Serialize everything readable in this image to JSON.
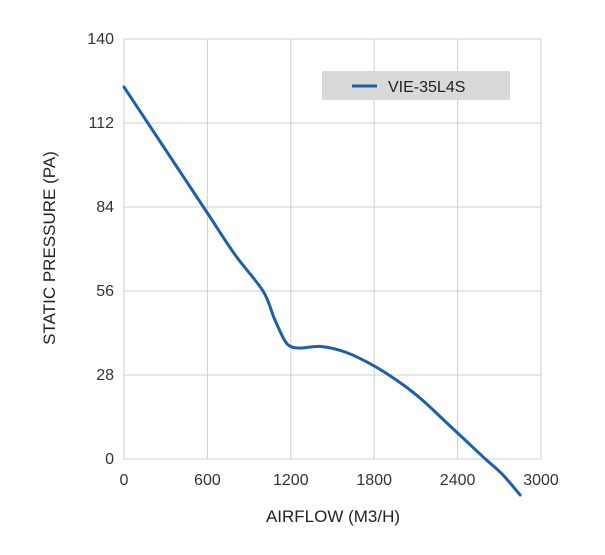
{
  "chart_data": {
    "type": "line",
    "xlabel": "AIRFLOW (M3/H)",
    "ylabel": "STATIC PRESSURE (PA)",
    "xlim": [
      0,
      3000
    ],
    "ylim": [
      0,
      140
    ],
    "x_ticks": [
      0,
      600,
      1200,
      1800,
      2400,
      3000
    ],
    "y_ticks": [
      0,
      28,
      56,
      84,
      112,
      140
    ],
    "grid": true,
    "legend_position": "top-right",
    "series": [
      {
        "name": "VIE-35L4S",
        "color": "#1f5fa8",
        "x": [
          0,
          200,
          400,
          600,
          800,
          1000,
          1080,
          1150,
          1200,
          1280,
          1420,
          1600,
          1800,
          2000,
          2150,
          2300,
          2450,
          2600,
          2720,
          2850
        ],
        "y": [
          124,
          110,
          96,
          82,
          68,
          56,
          47,
          40,
          37.5,
          37,
          37.5,
          35.5,
          31,
          25,
          19.5,
          13,
          6.5,
          0,
          -5,
          -12
        ]
      }
    ]
  }
}
